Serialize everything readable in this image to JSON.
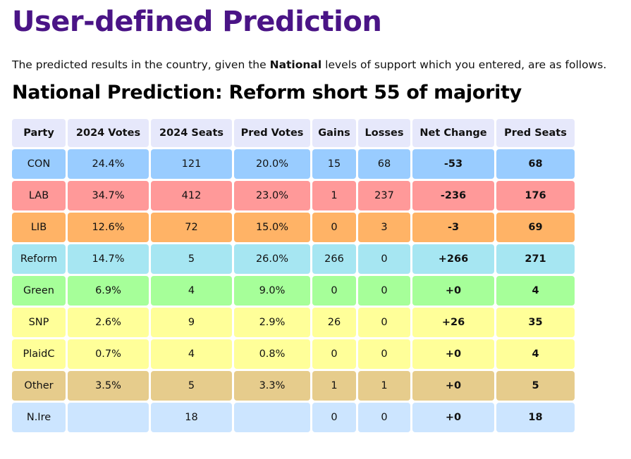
{
  "page": {
    "title": "User-defined Prediction",
    "intro_before": "The predicted results in the country, given the ",
    "intro_bold": "National",
    "intro_after": " levels of support which you entered, are as follows.",
    "subtitle": "National Prediction: Reform short 55 of majority"
  },
  "table": {
    "headers": [
      "Party",
      "2024 Votes",
      "2024 Seats",
      "Pred Votes",
      "Gains",
      "Losses",
      "Net Change",
      "Pred Seats"
    ],
    "rows": [
      {
        "party": "CON",
        "votes24": "24.4%",
        "seats24": "121",
        "pred_votes": "20.0%",
        "gains": "15",
        "losses": "68",
        "net": "-53",
        "pred_seats": "68",
        "color": "#99ccff"
      },
      {
        "party": "LAB",
        "votes24": "34.7%",
        "seats24": "412",
        "pred_votes": "23.0%",
        "gains": "1",
        "losses": "237",
        "net": "-236",
        "pred_seats": "176",
        "color": "#ff9999"
      },
      {
        "party": "LIB",
        "votes24": "12.6%",
        "seats24": "72",
        "pred_votes": "15.0%",
        "gains": "0",
        "losses": "3",
        "net": "-3",
        "pred_seats": "69",
        "color": "#ffb366"
      },
      {
        "party": "Reform",
        "votes24": "14.7%",
        "seats24": "5",
        "pred_votes": "26.0%",
        "gains": "266",
        "losses": "0",
        "net": "+266",
        "pred_seats": "271",
        "color": "#a6e6f2"
      },
      {
        "party": "Green",
        "votes24": "6.9%",
        "seats24": "4",
        "pred_votes": "9.0%",
        "gains": "0",
        "losses": "0",
        "net": "+0",
        "pred_seats": "4",
        "color": "#a6ff99"
      },
      {
        "party": "SNP",
        "votes24": "2.6%",
        "seats24": "9",
        "pred_votes": "2.9%",
        "gains": "26",
        "losses": "0",
        "net": "+26",
        "pred_seats": "35",
        "color": "#ffff99"
      },
      {
        "party": "PlaidC",
        "votes24": "0.7%",
        "seats24": "4",
        "pred_votes": "0.8%",
        "gains": "0",
        "losses": "0",
        "net": "+0",
        "pred_seats": "4",
        "color": "#ffff99"
      },
      {
        "party": "Other",
        "votes24": "3.5%",
        "seats24": "5",
        "pred_votes": "3.3%",
        "gains": "1",
        "losses": "1",
        "net": "+0",
        "pred_seats": "5",
        "color": "#e6cc8c"
      },
      {
        "party": "N.Ire",
        "votes24": "",
        "seats24": "18",
        "pred_votes": "",
        "gains": "0",
        "losses": "0",
        "net": "+0",
        "pred_seats": "18",
        "color": "#cce5ff"
      }
    ]
  }
}
